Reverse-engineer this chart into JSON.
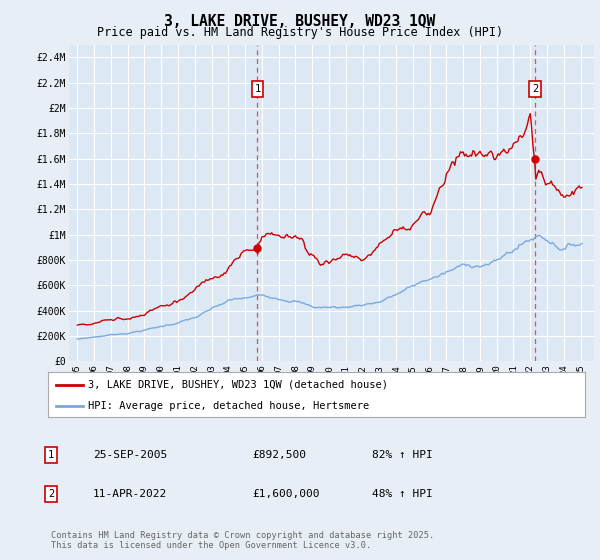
{
  "title": "3, LAKE DRIVE, BUSHEY, WD23 1QW",
  "subtitle": "Price paid vs. HM Land Registry's House Price Index (HPI)",
  "background_color": "#e8eef5",
  "plot_bg_color": "#dce8f4",
  "grid_color": "#ffffff",
  "sale1_x": 2005.73,
  "sale1_y": 892500,
  "sale2_x": 2022.28,
  "sale2_y": 1600000,
  "red_color": "#cc0000",
  "blue_color": "#7aaadd",
  "dashed_color": "#dd4444",
  "ylim": [
    0,
    2500000
  ],
  "xlim_start": 1994.5,
  "xlim_end": 2025.8,
  "yticks": [
    0,
    200000,
    400000,
    600000,
    800000,
    1000000,
    1200000,
    1400000,
    1600000,
    1800000,
    2000000,
    2200000,
    2400000
  ],
  "ytick_labels": [
    "£0",
    "£200K",
    "£400K",
    "£600K",
    "£800K",
    "£1M",
    "£1.2M",
    "£1.4M",
    "£1.6M",
    "£1.8M",
    "£2M",
    "£2.2M",
    "£2.4M"
  ],
  "xticks": [
    1995,
    1996,
    1997,
    1998,
    1999,
    2000,
    2001,
    2002,
    2003,
    2004,
    2005,
    2006,
    2007,
    2008,
    2009,
    2010,
    2011,
    2012,
    2013,
    2014,
    2015,
    2016,
    2017,
    2018,
    2019,
    2020,
    2021,
    2022,
    2023,
    2024,
    2025
  ],
  "legend_label_red": "3, LAKE DRIVE, BUSHEY, WD23 1QW (detached house)",
  "legend_label_blue": "HPI: Average price, detached house, Hertsmere",
  "footer": "Contains HM Land Registry data © Crown copyright and database right 2025.\nThis data is licensed under the Open Government Licence v3.0.",
  "table_rows": [
    {
      "num": "1",
      "date": "25-SEP-2005",
      "price": "£892,500",
      "pct": "82% ↑ HPI"
    },
    {
      "num": "2",
      "date": "11-APR-2022",
      "price": "£1,600,000",
      "pct": "48% ↑ HPI"
    }
  ]
}
